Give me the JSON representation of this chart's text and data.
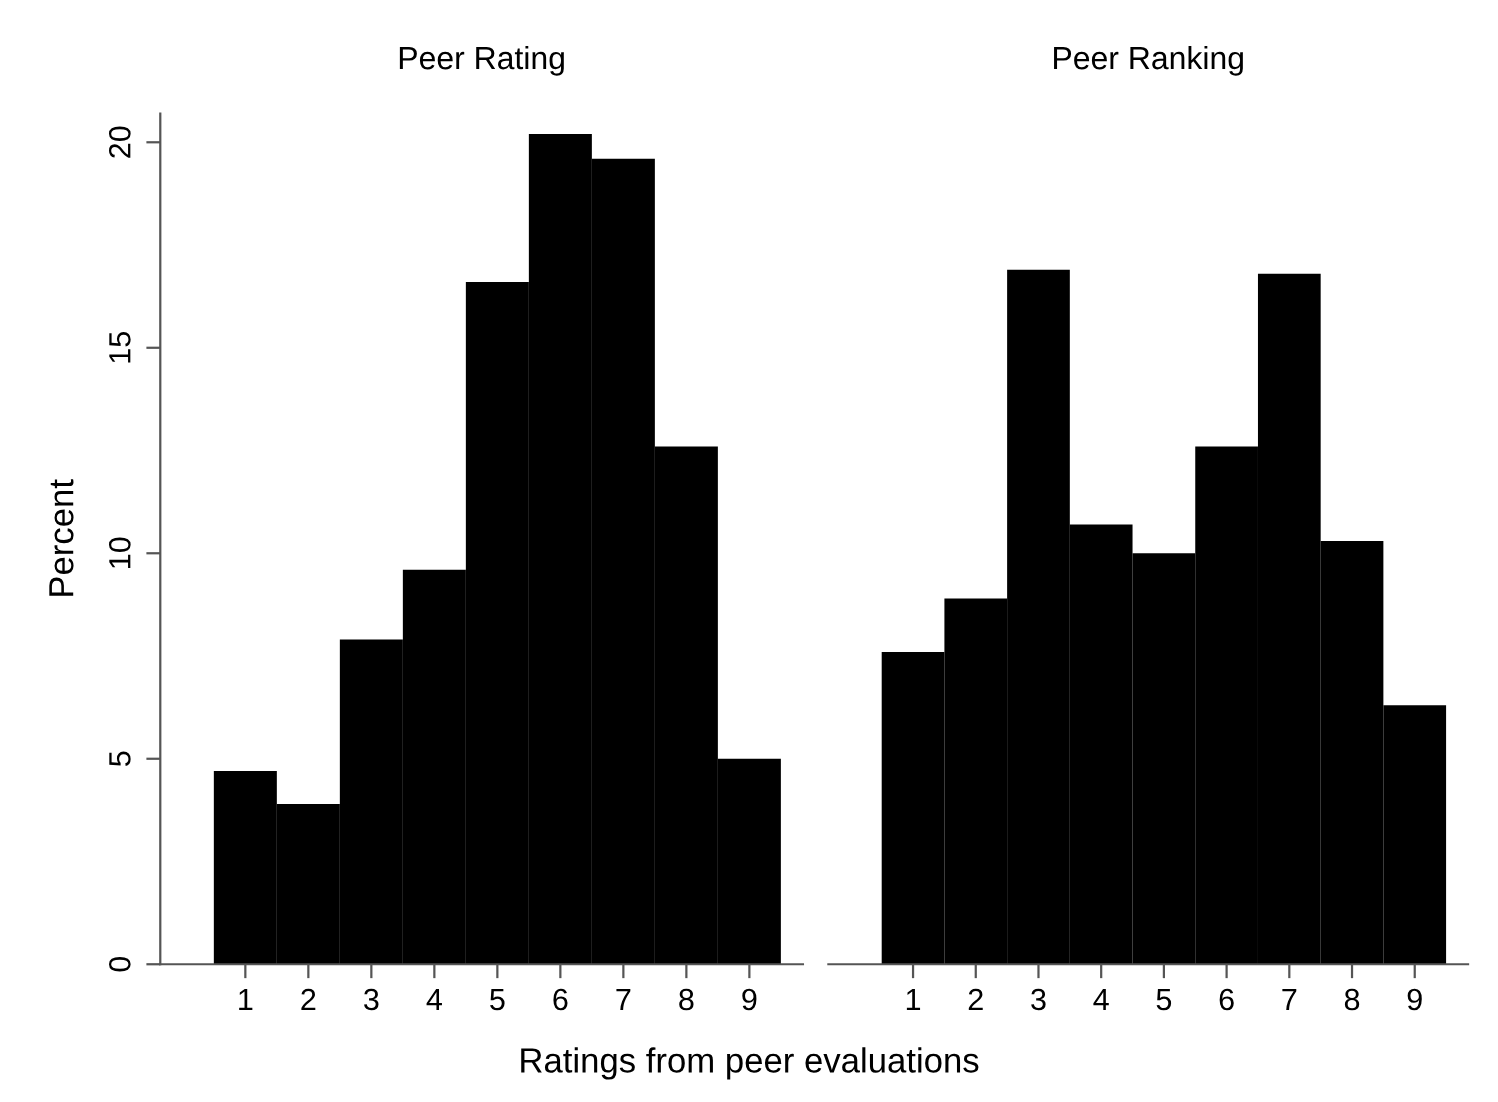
{
  "chart_data": [
    {
      "type": "histogram",
      "title": "Peer Rating",
      "xlabel": "Ratings from peer evaluations",
      "ylabel": "Percent",
      "bins": [
        0.5,
        1.5,
        2.5,
        3.5,
        4.5,
        5.5,
        6.5,
        7.5,
        8.5,
        9.5
      ],
      "values": [
        4.7,
        3.9,
        7.9,
        9.6,
        16.6,
        20.2,
        19.6,
        12.6,
        5.0
      ],
      "color": "#000000",
      "xlim": [
        -0.35,
        9.85
      ],
      "ylim": [
        0,
        20.7
      ],
      "xticks": [
        1,
        2,
        3,
        4,
        5,
        6,
        7,
        8,
        9
      ],
      "yticks": [
        0,
        5,
        10,
        15,
        20
      ],
      "grid": false
    },
    {
      "type": "histogram",
      "title": "Peer Ranking",
      "bins": [
        0.5,
        1.5,
        2.5,
        3.5,
        4.5,
        5.5,
        6.5,
        7.5,
        8.5,
        9.5
      ],
      "values": [
        7.6,
        8.9,
        16.9,
        10.7,
        10.0,
        12.6,
        16.8,
        10.3,
        6.3
      ],
      "color": "#000000",
      "xlim": [
        -0.35,
        9.85
      ],
      "ylim": [
        0,
        20
      ],
      "xticks": [
        1,
        2,
        3,
        4,
        5,
        6,
        7,
        8,
        9
      ],
      "yticks": [
        0,
        5,
        10,
        15,
        20
      ],
      "tick_labels": "x",
      "grid": false
    }
  ]
}
